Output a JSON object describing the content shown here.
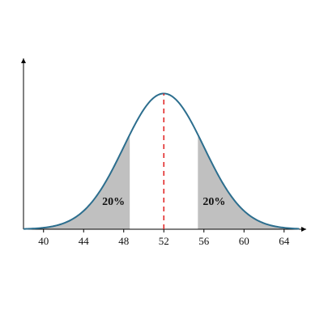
{
  "chart_data": {
    "type": "normal",
    "mean": 52,
    "sd": 4,
    "xlim": [
      38,
      66
    ],
    "ylim": [
      0,
      0.125
    ],
    "xticks": [
      40,
      44,
      48,
      52,
      56,
      60,
      64
    ],
    "shade_bounds": [
      48.6,
      55.4
    ],
    "tail_areas": [
      20,
      20
    ],
    "value_labels": [
      "20%",
      "20%"
    ],
    "curve_color": "#2c6e8e",
    "shade_color": "#c0c0c0",
    "mean_line_color": "#e02020"
  }
}
